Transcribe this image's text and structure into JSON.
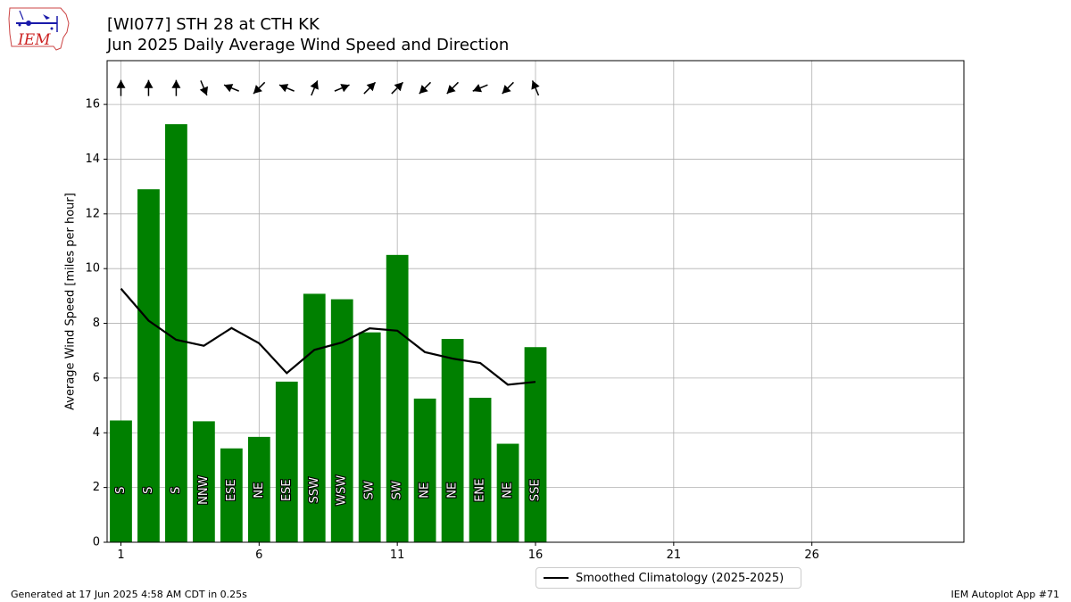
{
  "header": {
    "title": "[WI077] STH 28 at CTH KK",
    "subtitle": "Jun 2025 Daily Average Wind Speed and Direction"
  },
  "logo": {
    "text": "IEM",
    "icon": "iem-iowa-logo-icon"
  },
  "footer": {
    "left": "Generated at 17 Jun 2025 4:58 AM CDT in 0.25s",
    "right": "IEM Autoplot App #71"
  },
  "colors": {
    "bar": "#008000",
    "climatology": "#000000",
    "grid": "#b0b0b0",
    "logo_red": "#cc2222",
    "logo_blue": "#1a1aaa"
  },
  "chart_data": {
    "type": "bar",
    "ylabel": "Average Wind Speed [miles per hour]",
    "xlim": [
      0.5,
      31.5
    ],
    "ylim": [
      0,
      17.6
    ],
    "xticks": [
      1,
      6,
      11,
      16,
      21,
      26
    ],
    "yticks": [
      0,
      2,
      4,
      6,
      8,
      10,
      12,
      14,
      16
    ],
    "grid": true,
    "legend": {
      "placement": "bottom-center",
      "entries": [
        "Smoothed Climatology (2025-2025)"
      ]
    },
    "days": [
      1,
      2,
      3,
      4,
      5,
      6,
      7,
      8,
      9,
      10,
      11,
      12,
      13,
      14,
      15,
      16
    ],
    "speeds": [
      4.45,
      12.9,
      15.28,
      4.42,
      3.43,
      3.85,
      5.87,
      9.08,
      8.88,
      7.67,
      10.5,
      5.25,
      7.43,
      5.28,
      3.6,
      7.13
    ],
    "directions": [
      "S",
      "S",
      "S",
      "NNW",
      "ESE",
      "NE",
      "ESE",
      "SSW",
      "WSW",
      "SW",
      "SW",
      "NE",
      "NE",
      "ENE",
      "NE",
      "SSE"
    ],
    "direction_degrees": [
      180,
      180,
      180,
      337.5,
      112.5,
      45,
      112.5,
      202.5,
      247.5,
      225,
      225,
      45,
      45,
      67.5,
      45,
      157.5
    ],
    "series": [
      {
        "name": "Smoothed Climatology (2025-2025)",
        "type": "line",
        "x": [
          1,
          2,
          3,
          4,
          5,
          6,
          7,
          8,
          9,
          10,
          11,
          12,
          13,
          14,
          15,
          16
        ],
        "values": [
          9.27,
          8.1,
          7.4,
          7.18,
          7.83,
          7.27,
          6.18,
          7.03,
          7.3,
          7.82,
          7.73,
          6.95,
          6.71,
          6.55,
          5.76,
          5.86
        ]
      }
    ]
  }
}
